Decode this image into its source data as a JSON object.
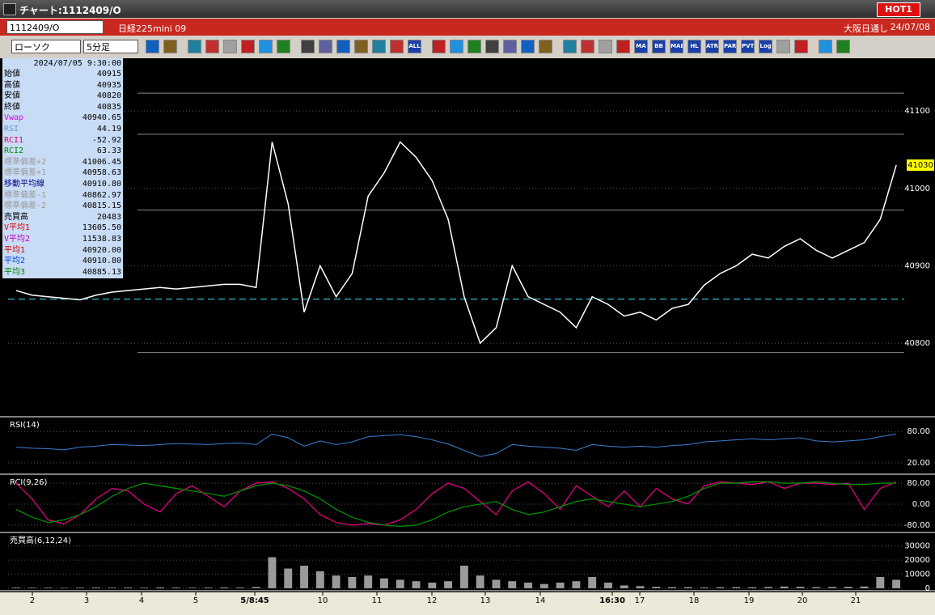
{
  "window": {
    "title": "チャート:1112409/O",
    "hot": "HOT1"
  },
  "header": {
    "symbol": "1112409/O",
    "name": "日経225mini 09",
    "session": "大阪日通し",
    "date": "24/07/08"
  },
  "toolbar": {
    "chart_type": "ローソク",
    "interval": "5分足",
    "buttons": [
      "ALL",
      "MA",
      "BB",
      "MAE",
      "HL",
      "ATR",
      "PAR",
      "PVT",
      "Log"
    ]
  },
  "info_panel": {
    "datetime": "2024/07/05 9:30:00",
    "rows": [
      {
        "label": "始値",
        "value": "40915",
        "color": "#000000"
      },
      {
        "label": "高値",
        "value": "40935",
        "color": "#000000"
      },
      {
        "label": "安値",
        "value": "40820",
        "color": "#000000"
      },
      {
        "label": "終値",
        "value": "40835",
        "color": "#000000"
      },
      {
        "label": "Vwap",
        "value": "40940.65",
        "color": "#e000e0"
      },
      {
        "label": "RSI",
        "value": "44.19",
        "color": "#5a9ae0"
      },
      {
        "label": "RCI1",
        "value": "-52.92",
        "color": "#e0007f"
      },
      {
        "label": "RCI2",
        "value": "63.33",
        "color": "#008800"
      },
      {
        "label": "標準偏差+2",
        "value": "41006.45",
        "color": "#9a9a9a"
      },
      {
        "label": "標準偏差+1",
        "value": "40958.63",
        "color": "#9a9a9a"
      },
      {
        "label": "移動平均線",
        "value": "40910.80",
        "color": "#000080"
      },
      {
        "label": "標準偏差-1",
        "value": "40862.97",
        "color": "#9a9a9a"
      },
      {
        "label": "標準偏差-2",
        "value": "40815.15",
        "color": "#9a9a9a"
      },
      {
        "label": "売買高",
        "value": "20483",
        "color": "#000000"
      },
      {
        "label": "V平均1",
        "value": "13605.50",
        "color": "#e00000"
      },
      {
        "label": "V平均2",
        "value": "11538.83",
        "color": "#c000c0"
      },
      {
        "label": "平均1",
        "value": "40920.00",
        "color": "#e00000"
      },
      {
        "label": "平均2",
        "value": "40910.80",
        "color": "#0040e0"
      },
      {
        "label": "平均3",
        "value": "40885.13",
        "color": "#008800"
      }
    ]
  },
  "chart_data": [
    {
      "type": "line",
      "color": "#ffffff",
      "ylim": [
        40706,
        41166
      ],
      "yticks": [
        40800,
        40900,
        41000,
        41100
      ],
      "levels": [
        41123,
        41070,
        40972,
        40788
      ],
      "reference_line": 40857,
      "values": [
        40868,
        40862,
        40860,
        40858,
        40856,
        40862,
        40866,
        40868,
        40870,
        40872,
        40870,
        40872,
        40874,
        40876,
        40876,
        40872,
        41060,
        40980,
        40840,
        40900,
        40860,
        40890,
        40990,
        41020,
        41060,
        41040,
        41010,
        40960,
        40860,
        40800,
        40820,
        40900,
        40860,
        40850,
        40840,
        40820,
        40860,
        40850,
        40835,
        40840,
        40830,
        40845,
        40850,
        40875,
        40890,
        40900,
        40915,
        40910,
        40925,
        40935,
        40920,
        40910,
        40920,
        40930,
        40960,
        41030
      ]
    },
    {
      "type": "line",
      "title": "RSI(14)",
      "color": "#3a7fd5",
      "ylim": [
        0,
        105
      ],
      "yticks": [
        {
          "value": 20,
          "label": "20.00"
        },
        {
          "value": 80,
          "label": "80.00"
        }
      ],
      "values": [
        50,
        48,
        47,
        45,
        50,
        52,
        55,
        54,
        53,
        55,
        57,
        56,
        55,
        57,
        58,
        55,
        75,
        68,
        52,
        62,
        55,
        60,
        70,
        72,
        74,
        70,
        64,
        56,
        44,
        32,
        38,
        55,
        52,
        50,
        48,
        44,
        55,
        52,
        50,
        52,
        50,
        53,
        55,
        60,
        62,
        64,
        66,
        64,
        66,
        68,
        62,
        60,
        62,
        64,
        70,
        75
      ]
    },
    {
      "type": "line",
      "title": "RCI(9,26)",
      "ylim": [
        -105,
        108
      ],
      "yticks": [
        {
          "value": -80,
          "label": "-80.00"
        },
        {
          "value": 0,
          "label": "0.00"
        },
        {
          "value": 80,
          "label": "80.00"
        }
      ],
      "series": [
        {
          "name": "RCI1",
          "color": "#e0007f",
          "values": [
            80,
            20,
            -60,
            -75,
            -40,
            20,
            60,
            50,
            0,
            -30,
            40,
            70,
            30,
            -10,
            50,
            80,
            85,
            60,
            20,
            -40,
            -70,
            -80,
            -75,
            -80,
            -60,
            -20,
            40,
            80,
            60,
            10,
            -40,
            50,
            85,
            40,
            -20,
            70,
            30,
            -10,
            50,
            -10,
            60,
            20,
            0,
            70,
            85,
            80,
            75,
            85,
            60,
            80,
            80,
            75,
            80,
            -20,
            60,
            85
          ]
        },
        {
          "name": "RCI2",
          "color": "#009000",
          "values": [
            -20,
            -50,
            -70,
            -60,
            -40,
            -10,
            30,
            60,
            80,
            70,
            60,
            50,
            40,
            30,
            50,
            70,
            80,
            70,
            50,
            20,
            -20,
            -50,
            -70,
            -80,
            -85,
            -80,
            -60,
            -30,
            -10,
            0,
            10,
            -20,
            -40,
            -30,
            -10,
            10,
            20,
            10,
            0,
            -10,
            0,
            10,
            30,
            60,
            80,
            80,
            85,
            85,
            80,
            80,
            85,
            80,
            75,
            75,
            80,
            80
          ]
        }
      ]
    },
    {
      "type": "bar",
      "title": "売買高(6,12,24)",
      "color": "#9a9a9a",
      "ylim": [
        -600,
        38400
      ],
      "yticks": [
        0,
        10000,
        20000,
        30000
      ],
      "values": [
        500,
        400,
        400,
        300,
        400,
        500,
        400,
        500,
        400,
        600,
        500,
        400,
        500,
        600,
        500,
        900,
        22000,
        14000,
        16000,
        12000,
        9000,
        8000,
        9000,
        7000,
        6000,
        5000,
        4000,
        5000,
        16000,
        9000,
        6000,
        5000,
        4000,
        3000,
        4000,
        5000,
        8000,
        4000,
        2000,
        1500,
        1000,
        800,
        800,
        600,
        700,
        800,
        700,
        900,
        1200,
        1000,
        800,
        900,
        1000,
        1200,
        8000,
        6000
      ]
    }
  ],
  "x_labels": [
    "2",
    "3",
    "4",
    "5",
    "5/8:45",
    "10",
    "11",
    "12",
    "13",
    "14",
    "16:30",
    "17",
    "18",
    "19",
    "20",
    "21"
  ]
}
